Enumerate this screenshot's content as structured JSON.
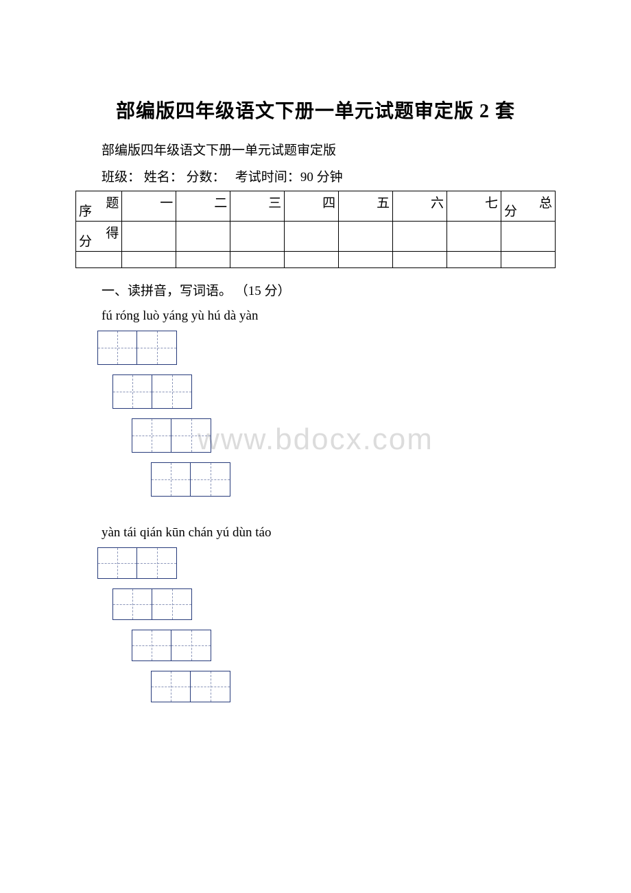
{
  "title": "部编版四年级语文下册一单元试题审定版 2 套",
  "subtitle": "部编版四年级语文下册一单元试题审定版",
  "meta": {
    "class_label": "班级：",
    "name_label": "姓名：",
    "score_label": "分数：",
    "time_label": "考试时间：",
    "time_value": "90 分钟"
  },
  "score_table": {
    "row1_label_top": "题",
    "row1_label_bottom": "序",
    "row1_cells": [
      "一",
      "二",
      "三",
      "四",
      "五",
      "六",
      "七"
    ],
    "row1_total_top": "总",
    "row1_total_bottom": "分",
    "row2_label_top": "得",
    "row2_label_bottom": "分",
    "colors": {
      "border": "#000000",
      "text": "#000000"
    }
  },
  "section1": {
    "heading": "一、读拼音，写词语。  （15 分）",
    "pinyin_group1": "fú  róng  luò yáng   yù hú   dà yàn",
    "pinyin_group2": "yàn tái  qián kūn   chán yú   dùn táo"
  },
  "tian_box": {
    "border_color": "#263a7a",
    "dash_color": "#8a95b9",
    "cell_width_1": 58,
    "cell_height_1": 50,
    "cell_width_2": 58,
    "cell_height_2": 46,
    "offset_steps": [
      0,
      22,
      28,
      28
    ]
  },
  "watermark": "www.bdocx.com"
}
